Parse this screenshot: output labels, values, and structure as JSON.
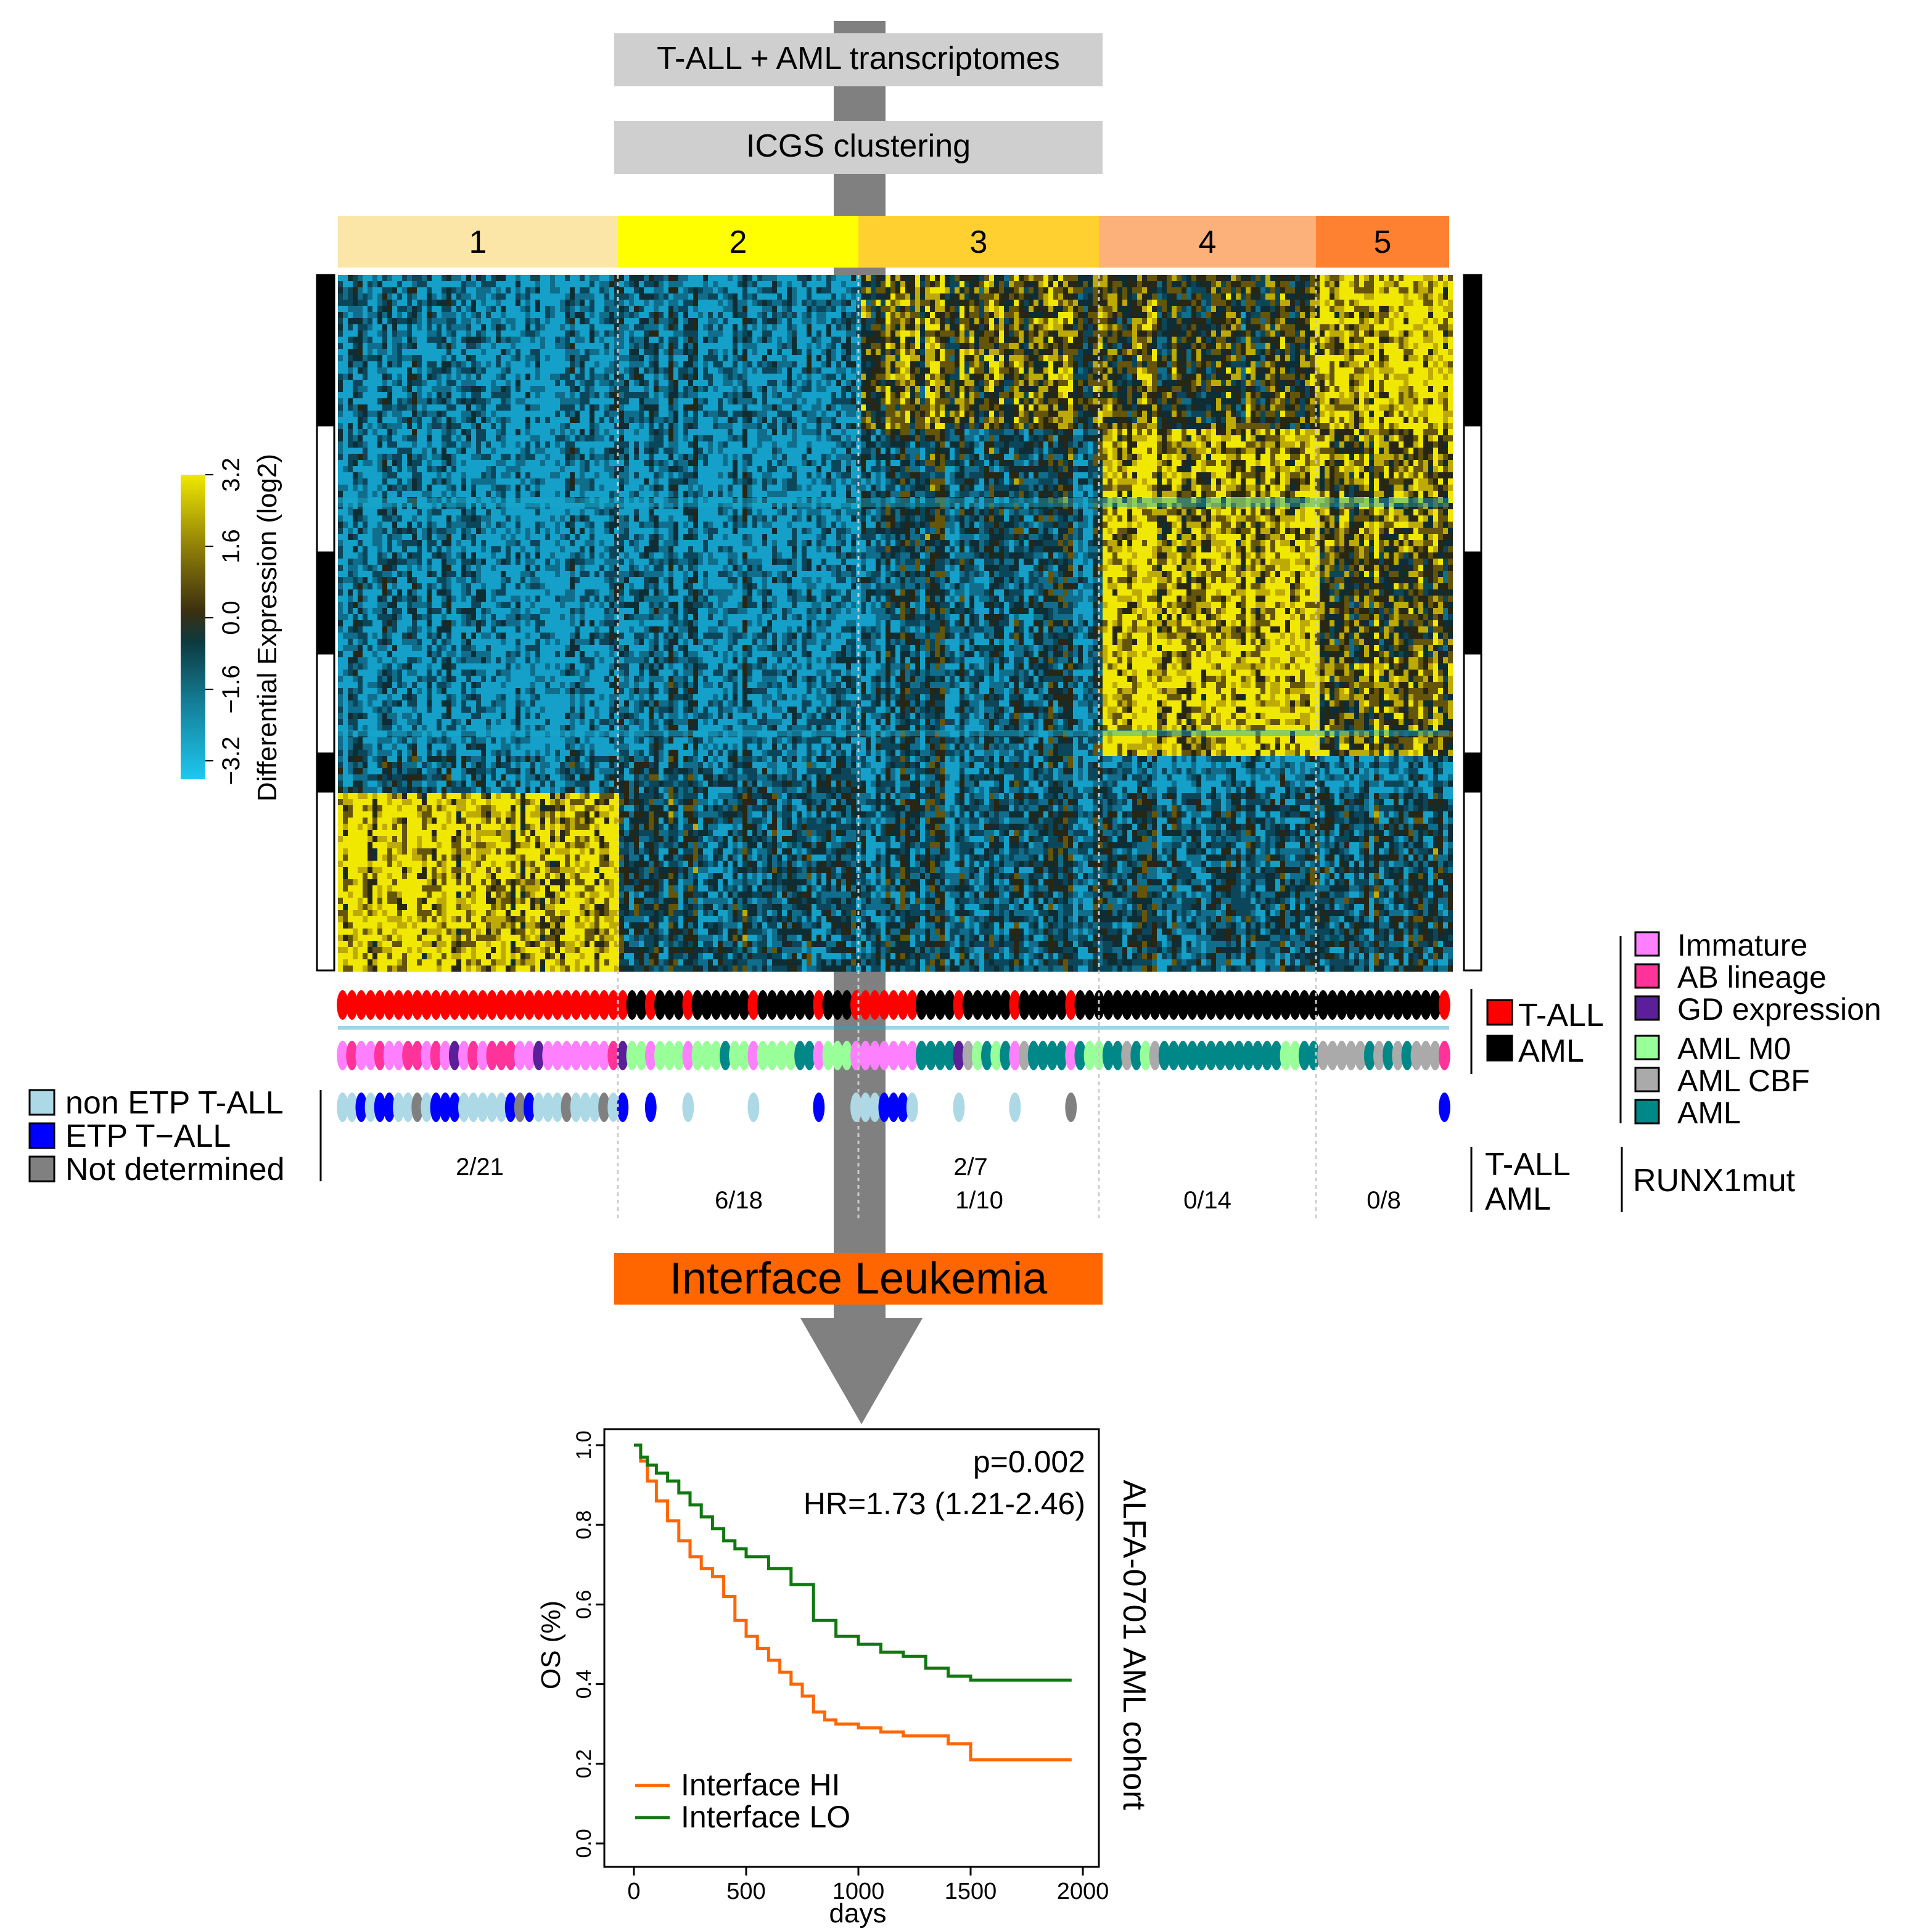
{
  "header": {
    "step1": "T-ALL + AML transcriptomes",
    "step2": "ICGS clustering",
    "result": "Interface Leukemia"
  },
  "colors": {
    "step_box": "#cfcfcf",
    "arrow": "#808080",
    "result_box": "#ff6600",
    "heat_low": "#1ec8f0",
    "heat_mid": "#0c2a2f",
    "heat_high": "#f0e800",
    "km_hi": "#ff6600",
    "km_lo": "#117711"
  },
  "clusters": [
    {
      "label": "1",
      "color": "#fbe6a8",
      "samples": 30
    },
    {
      "label": "2",
      "color": "#ffff00",
      "samples": 26
    },
    {
      "label": "3",
      "color": "#ffd030",
      "samples": 26
    },
    {
      "label": "4",
      "color": "#fcb07a",
      "samples": 23
    },
    {
      "label": "5",
      "color": "#fd8130",
      "samples": 14
    }
  ],
  "color_scale": {
    "title": "Differential Expression (log2)",
    "ticks": [
      "−3.2",
      "−1.6",
      "0.0",
      "1.6",
      "3.2"
    ]
  },
  "legends": {
    "disease": [
      {
        "label": "T-ALL",
        "color": "#ff0000"
      },
      {
        "label": "AML",
        "color": "#000000"
      }
    ],
    "subtype_tall": [
      {
        "label": "Immature",
        "color": "#ff80ff"
      },
      {
        "label": "AB lineage",
        "color": "#ff3399"
      },
      {
        "label": "GD expression",
        "color": "#5a1f99"
      }
    ],
    "subtype_aml": [
      {
        "label": "AML M0",
        "color": "#99ff99"
      },
      {
        "label": "AML CBF",
        "color": "#aaaaaa"
      },
      {
        "label": "AML",
        "color": "#008888"
      }
    ],
    "etp": [
      {
        "label": "non ETP T-ALL",
        "color": "#add8e6"
      },
      {
        "label": "ETP T−ALL",
        "color": "#0000ff"
      },
      {
        "label": "Not determined",
        "color": "#808080"
      }
    ]
  },
  "runx1": {
    "row_labels": [
      "T-ALL",
      "AML"
    ],
    "title": "RUNX1mut",
    "tall": [
      "2/21",
      "",
      "2/7",
      "",
      ""
    ],
    "aml": [
      "",
      "6/18",
      "1/10",
      "0/14",
      "0/8"
    ]
  },
  "chart_data": {
    "type": "line",
    "title": "",
    "side_label": "ALFA-0701 AML cohort",
    "xlabel": "days",
    "ylabel": "OS (%)",
    "xlim": [
      0,
      2000
    ],
    "ylim": [
      0,
      1
    ],
    "xticks": [
      "0",
      "500",
      "1000",
      "1500",
      "2000"
    ],
    "yticks": [
      "0.0",
      "0.2",
      "0.4",
      "0.6",
      "0.8",
      "1.0"
    ],
    "annotations": [
      "p=0.002",
      "HR=1.73 (1.21-2.46)"
    ],
    "legend_position": "bottom-left",
    "series": [
      {
        "name": "Interface HI",
        "color": "#ff6600",
        "x": [
          0,
          30,
          60,
          100,
          150,
          200,
          250,
          300,
          350,
          400,
          450,
          500,
          550,
          600,
          650,
          700,
          750,
          800,
          850,
          900,
          950,
          1000,
          1100,
          1200,
          1300,
          1400,
          1500,
          1700,
          1950
        ],
        "y": [
          1.0,
          0.96,
          0.91,
          0.86,
          0.81,
          0.76,
          0.72,
          0.69,
          0.67,
          0.62,
          0.56,
          0.52,
          0.49,
          0.46,
          0.43,
          0.4,
          0.37,
          0.33,
          0.31,
          0.3,
          0.3,
          0.29,
          0.28,
          0.27,
          0.27,
          0.25,
          0.21,
          0.21,
          0.21
        ]
      },
      {
        "name": "Interface LO",
        "color": "#117711",
        "x": [
          0,
          30,
          60,
          100,
          150,
          200,
          250,
          300,
          350,
          400,
          450,
          500,
          600,
          700,
          800,
          900,
          1000,
          1100,
          1200,
          1300,
          1400,
          1500,
          1700,
          1950
        ],
        "y": [
          1.0,
          0.97,
          0.95,
          0.93,
          0.91,
          0.88,
          0.85,
          0.82,
          0.79,
          0.76,
          0.74,
          0.72,
          0.69,
          0.65,
          0.56,
          0.52,
          0.5,
          0.48,
          0.47,
          0.44,
          0.42,
          0.41,
          0.41,
          0.41
        ]
      }
    ]
  }
}
